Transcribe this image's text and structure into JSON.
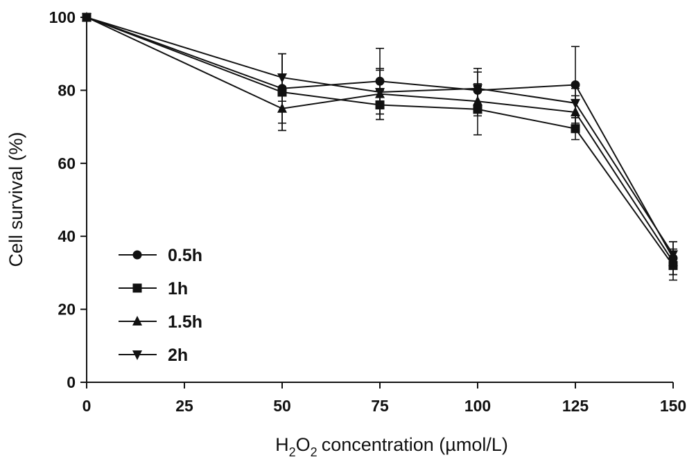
{
  "chart_data": {
    "type": "line",
    "title": "",
    "xlabel": "concentration (µmol/L)",
    "xlabel_prefix": "H",
    "xlabel_sub1": "2",
    "xlabel_mid": "O",
    "xlabel_sub2": "2",
    "ylabel": "Cell survival (%)",
    "x": [
      0,
      50,
      75,
      100,
      125,
      150
    ],
    "xticks": [
      "0",
      "25",
      "50",
      "75",
      "100",
      "125",
      "150"
    ],
    "xtick_values": [
      0,
      25,
      50,
      75,
      100,
      125,
      150
    ],
    "yticks": [
      "0",
      "20",
      "40",
      "60",
      "80",
      "100"
    ],
    "ytick_values": [
      0,
      20,
      40,
      60,
      80,
      100
    ],
    "xlim": [
      0,
      150
    ],
    "ylim": [
      0,
      100
    ],
    "grid": false,
    "legend_position": "bottom-left",
    "series": [
      {
        "name": "0.5h",
        "marker": "circle",
        "values": [
          100,
          80.5,
          82.5,
          80,
          81.5,
          34
        ],
        "errors": [
          0,
          9.5,
          9,
          6,
          10.5,
          4.5
        ]
      },
      {
        "name": "1h",
        "marker": "square",
        "values": [
          100,
          79.5,
          76,
          74.8,
          69.5,
          32
        ],
        "errors": [
          0,
          10.5,
          4,
          7,
          3,
          4
        ]
      },
      {
        "name": "1.5h",
        "marker": "triangle-up",
        "values": [
          100,
          75,
          79,
          77,
          74,
          33
        ],
        "errors": [
          0,
          6,
          7,
          4,
          4.5,
          3.5
        ]
      },
      {
        "name": "2h",
        "marker": "triangle-down",
        "values": [
          100,
          83.5,
          79.5,
          80.5,
          76.5,
          35
        ],
        "errors": [
          0,
          6.5,
          6,
          4.5,
          4,
          3.5
        ]
      }
    ]
  }
}
